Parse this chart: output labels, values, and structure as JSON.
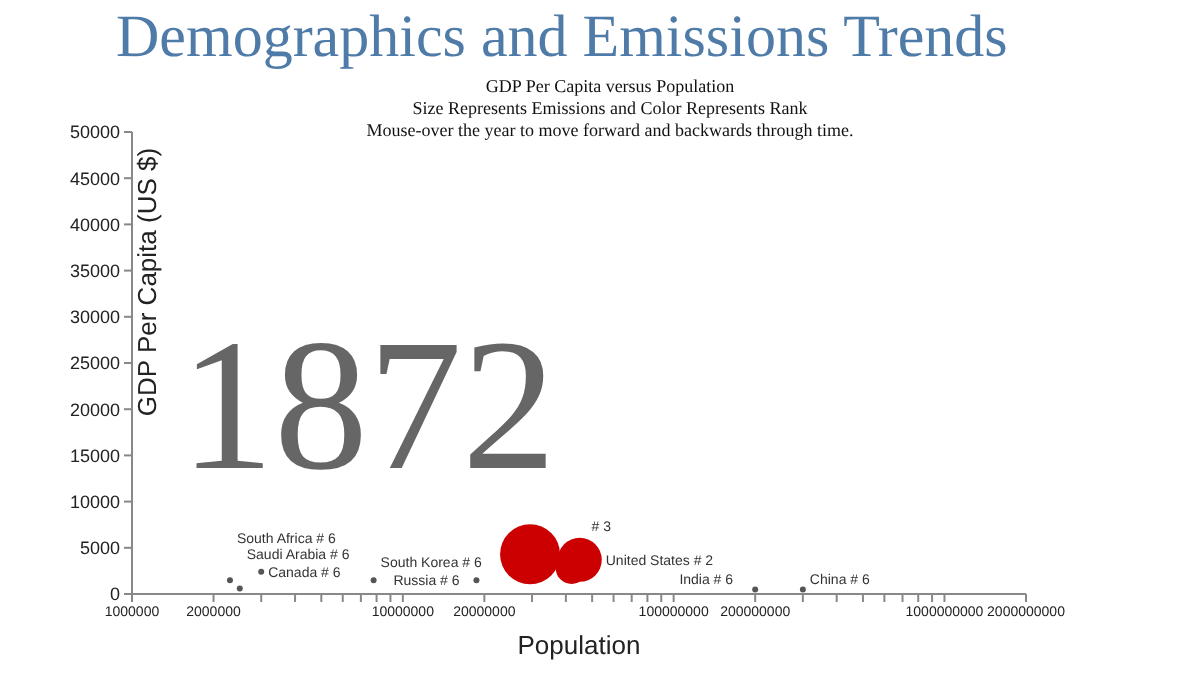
{
  "chart_data": {
    "type": "bubble",
    "title": "Demographics and Emissions Trends",
    "subtitle": "GDP Per Capita versus Population\nSize Represents Emissions and Color Represents Rank\nMouse-over the year to move forward and backwards through time.",
    "xlabel": "Population",
    "ylabel": "GDP Per Capita (US $)",
    "annotations": [
      "1872",
      {
        "text": "United States # 2",
        "x": 45000000,
        "y": 3700
      },
      {
        "text": "# 3",
        "x": 42000000,
        "y": 2800
      },
      {
        "text": "Canada # 6",
        "x": 3000000,
        "y": 2400
      },
      {
        "text": "South Africa # 6",
        "x": 2300000,
        "y": 1500
      },
      {
        "text": "Saudi Arabia # 6",
        "x": 2500000,
        "y": 600
      },
      {
        "text": "South Korea # 6",
        "x": 7800000,
        "y": 1500
      },
      {
        "text": "Russia # 6",
        "x": 18700000,
        "y": 1500
      },
      {
        "text": "India # 6",
        "x": 200000000,
        "y": 500
      },
      {
        "text": "China # 6",
        "x": 300000000,
        "y": 500
      }
    ],
    "x": [
      29500000,
      45000000,
      42000000,
      3000000,
      2300000,
      2500000,
      7800000,
      18700000,
      200000000,
      300000000
    ],
    "values": [
      4300,
      3700,
      2800,
      2400,
      1500,
      600,
      1500,
      1500,
      500,
      500
    ],
    "sizes": [
      1,
      0.54,
      0.28,
      0.01,
      0.01,
      0.01,
      0.01,
      0.01,
      0.01,
      0.01
    ],
    "colors": [
      "#cc0000",
      "#cc0000",
      "#cc0000",
      "#555555",
      "#555555",
      "#555555",
      "#555555",
      "#555555",
      "#555555",
      "#555555"
    ],
    "log": "x",
    "marker": "circle",
    "xlim": [
      1000000,
      2000000000
    ],
    "xticks": [
      1000000,
      2000000,
      {
        "value": 3000000,
        "label": null
      },
      {
        "value": 4000000,
        "label": null
      },
      {
        "value": 5000000,
        "label": null
      },
      {
        "value": 6000000,
        "label": null
      },
      {
        "value": 7000000,
        "label": null
      },
      {
        "value": 8000000,
        "label": null
      },
      {
        "value": 9000000,
        "label": null
      },
      10000000,
      20000000,
      {
        "value": 30000000,
        "label": null
      },
      {
        "value": 40000000,
        "label": null
      },
      {
        "value": 50000000,
        "label": null
      },
      {
        "value": 60000000,
        "label": null
      },
      {
        "value": 70000000,
        "label": null
      },
      {
        "value": 80000000,
        "label": null
      },
      {
        "value": 90000000,
        "label": null
      },
      100000000,
      200000000,
      {
        "value": 300000000,
        "label": null
      },
      {
        "value": 400000000,
        "label": null
      },
      {
        "value": 500000000,
        "label": null
      },
      {
        "value": 600000000,
        "label": null
      },
      {
        "value": 700000000,
        "label": null
      },
      {
        "value": 800000000,
        "label": null
      },
      {
        "value": 900000000,
        "label": null
      },
      1000000000,
      2000000000
    ],
    "ylim": [
      0,
      50000
    ],
    "yticks": [
      0,
      5000,
      10000,
      15000,
      20000,
      25000,
      30000,
      35000,
      40000,
      45000,
      50000
    ],
    "grid": false,
    "legend": false
  }
}
